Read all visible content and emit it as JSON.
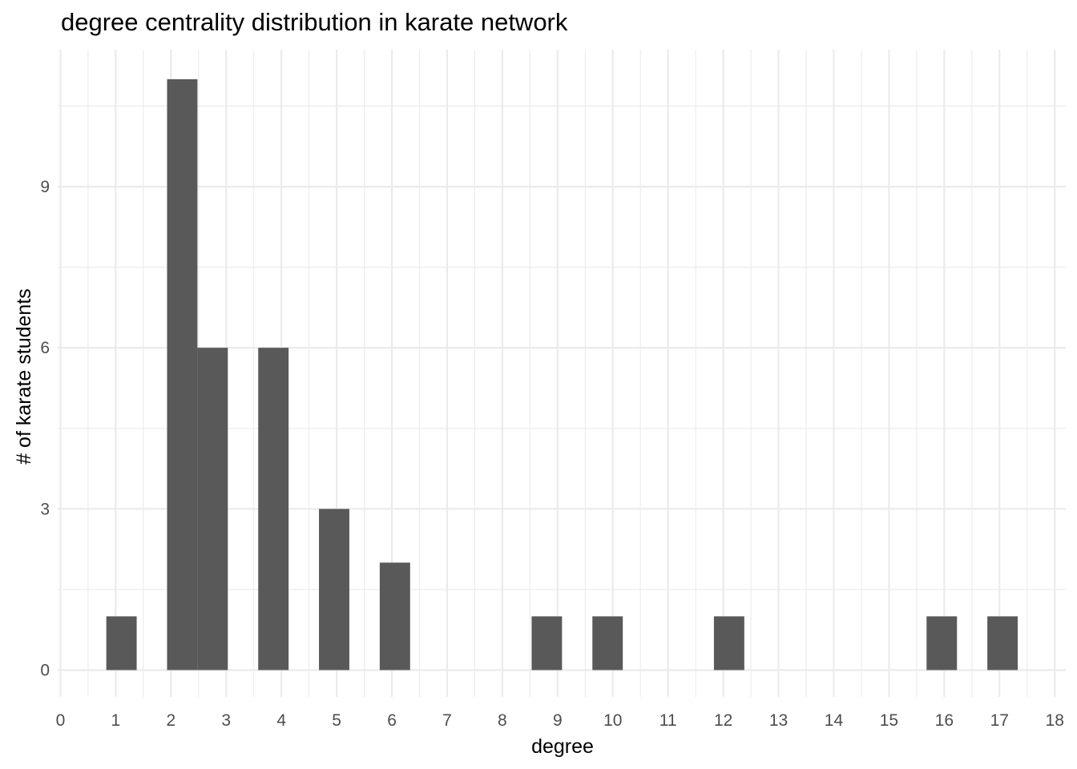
{
  "chart_data": {
    "type": "bar",
    "title": "degree centrality distribution in karate network",
    "xlabel": "degree",
    "ylabel": "# of karate students",
    "xlim": [
      -0.05,
      18.2
    ],
    "ylim": [
      -0.5,
      11.55
    ],
    "x_ticks": [
      0,
      1,
      2,
      3,
      4,
      5,
      6,
      7,
      8,
      9,
      10,
      11,
      12,
      13,
      14,
      15,
      16,
      17,
      18
    ],
    "y_ticks": [
      0,
      3,
      6,
      9
    ],
    "bar_width": 0.55,
    "bars": [
      {
        "x_start": 0.83,
        "value": 1
      },
      {
        "x_start": 1.93,
        "value": 11
      },
      {
        "x_start": 2.48,
        "value": 6
      },
      {
        "x_start": 3.58,
        "value": 6
      },
      {
        "x_start": 4.68,
        "value": 3
      },
      {
        "x_start": 5.78,
        "value": 2
      },
      {
        "x_start": 8.53,
        "value": 1
      },
      {
        "x_start": 9.63,
        "value": 1
      },
      {
        "x_start": 11.83,
        "value": 1
      },
      {
        "x_start": 15.68,
        "value": 1
      },
      {
        "x_start": 16.78,
        "value": 1
      }
    ],
    "grid": true,
    "bar_color": "#595959",
    "grid_color": "#ebebeb",
    "legend": "none"
  }
}
